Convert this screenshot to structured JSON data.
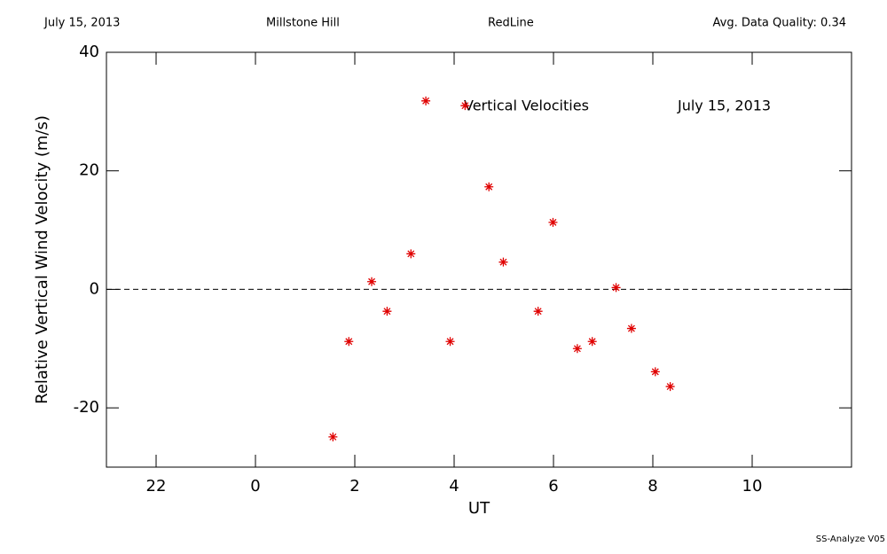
{
  "header": [
    "July 15, 2013",
    "Millstone Hill",
    "RedLine",
    "Avg. Data Quality: 0.34"
  ],
  "chart_data": {
    "type": "scatter",
    "xlabel": "UT",
    "ylabel": "Relative Vertical Wind Velocity (m/s)",
    "annotations": [
      "Vertical Velocities",
      "July 15, 2013"
    ],
    "x": [
      1.56,
      1.88,
      2.34,
      2.65,
      3.13,
      3.43,
      3.92,
      4.22,
      4.7,
      4.99,
      5.69,
      5.99,
      6.48,
      6.78,
      7.26,
      7.57,
      8.05,
      8.35
    ],
    "values": [
      -24.9,
      -8.8,
      1.3,
      -3.7,
      6.0,
      31.8,
      -8.8,
      31.0,
      17.3,
      4.6,
      -3.7,
      11.3,
      -10.0,
      -8.8,
      0.3,
      -6.6,
      -13.9,
      -16.4
    ],
    "color": "#e00000",
    "xlim": [
      -3,
      12
    ],
    "xticks": [
      {
        "value": -2,
        "label": "22"
      },
      0,
      2,
      4,
      6,
      8,
      10
    ],
    "ylim": [
      -30,
      40
    ],
    "yticks": [
      -20,
      0,
      20,
      40
    ],
    "reference_line": 0
  },
  "footer": "SS-Analyze V05"
}
